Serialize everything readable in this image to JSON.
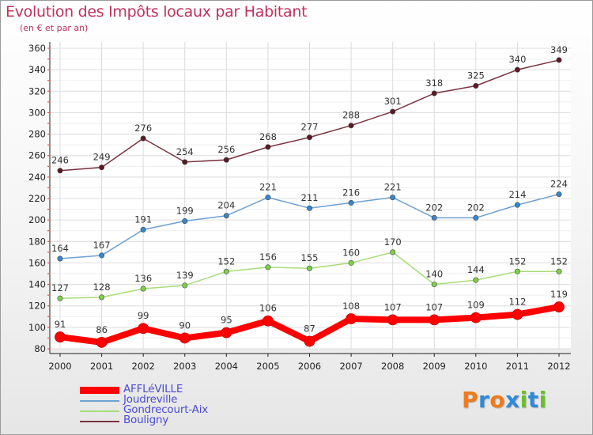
{
  "title": "Evolution des Impôts locaux par Habitant",
  "subtitle": "(en € et par an)",
  "logo": {
    "letters": [
      "P",
      "r",
      "o",
      "x",
      "i",
      "t",
      "i"
    ],
    "colors": [
      "#f07a1a",
      "#2f8ad6",
      "#f07a1a",
      "#2f8ad6",
      "#6cbf2a",
      "#2f8ad6",
      "#6cbf2a"
    ]
  },
  "chart_data": {
    "type": "line",
    "title": "Evolution des Impôts locaux par Habitant",
    "subtitle": "(en € et par an)",
    "x": [
      "2000",
      "2001",
      "2002",
      "2003",
      "2004",
      "2005",
      "2006",
      "2007",
      "2008",
      "2009",
      "2010",
      "2011",
      "2012"
    ],
    "ylim": [
      80,
      360
    ],
    "yticks": [
      80,
      100,
      120,
      140,
      160,
      180,
      200,
      220,
      240,
      260,
      280,
      300,
      320,
      340,
      360
    ],
    "grid": true,
    "legend_position": "bottom-left",
    "series": [
      {
        "name": "AFFLéVILLE",
        "color": "#ff0000",
        "marker": "#ff0000",
        "width": 8,
        "values": [
          91,
          86,
          99,
          90,
          95,
          106,
          87,
          108,
          107,
          107,
          109,
          112,
          119
        ]
      },
      {
        "name": "Joudreville",
        "color": "#6ea0d2",
        "marker": "#3a86cc",
        "width": 1.5,
        "values": [
          164,
          167,
          191,
          199,
          204,
          221,
          211,
          216,
          221,
          202,
          202,
          214,
          224
        ]
      },
      {
        "name": "Gondrecourt-Aix",
        "color": "#a8dc7a",
        "marker": "#7ed14a",
        "width": 1.5,
        "values": [
          127,
          128,
          136,
          139,
          152,
          156,
          155,
          160,
          170,
          140,
          144,
          152,
          152
        ]
      },
      {
        "name": "Bouligny",
        "color": "#7a3440",
        "marker": "#5a1a24",
        "width": 1.5,
        "values": [
          246,
          249,
          276,
          254,
          256,
          268,
          277,
          288,
          301,
          318,
          325,
          340,
          349
        ]
      }
    ]
  }
}
